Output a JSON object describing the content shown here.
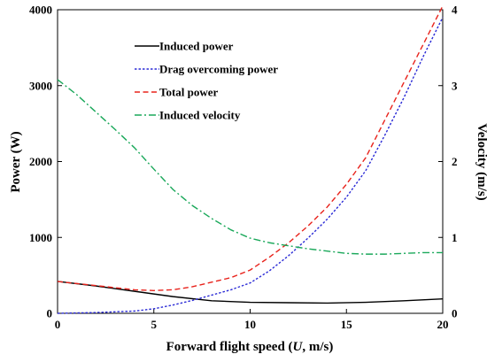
{
  "chart_data": {
    "type": "line",
    "xlabel_parts": [
      "Forward flight speed (",
      "U",
      ", m/s)"
    ],
    "ylabel_left": "Power (W)",
    "ylabel_right": "Velocity (m/s)",
    "xlim": [
      0,
      20
    ],
    "ylim_left": [
      0,
      4000
    ],
    "ylim_right": [
      0,
      4
    ],
    "xticks": [
      "0",
      "5",
      "10",
      "15",
      "20"
    ],
    "yticks_left": [
      "0",
      "1000",
      "2000",
      "3000",
      "4000"
    ],
    "yticks_right": [
      "0",
      "1",
      "2",
      "3",
      "4"
    ],
    "grid": false,
    "legend_position": "top-left",
    "series": [
      {
        "name": "Induced power",
        "axis": "left",
        "color": "#000000",
        "dash": "solid",
        "x": [
          0,
          2,
          4,
          6,
          8,
          10,
          12,
          14,
          16,
          18,
          20
        ],
        "y": [
          420,
          360,
          290,
          220,
          165,
          145,
          140,
          135,
          145,
          165,
          190
        ]
      },
      {
        "name": "Drag overcoming power",
        "axis": "left",
        "color": "#2b2bd6",
        "dash": "dotted",
        "x": [
          0,
          2,
          4,
          5,
          6,
          7,
          8,
          9,
          10,
          11,
          12,
          13,
          14,
          15,
          16,
          17,
          18,
          19,
          20
        ],
        "y": [
          0,
          10,
          30,
          60,
          110,
          170,
          240,
          310,
          400,
          560,
          760,
          990,
          1240,
          1530,
          1880,
          2350,
          2850,
          3390,
          3900
        ]
      },
      {
        "name": "Total power",
        "axis": "left",
        "color": "#e8231c",
        "dash": "dashed",
        "x": [
          0,
          2,
          4,
          5,
          6,
          7,
          8,
          9,
          10,
          11,
          12,
          13,
          14,
          15,
          16,
          17,
          18,
          19,
          20
        ],
        "y": [
          420,
          365,
          310,
          300,
          310,
          350,
          410,
          470,
          570,
          740,
          930,
          1150,
          1400,
          1700,
          2050,
          2550,
          3050,
          3550,
          4050
        ]
      },
      {
        "name": "Induced velocity",
        "axis": "right",
        "color": "#1aa85a",
        "dash": "dashdot",
        "x": [
          0,
          1,
          2,
          3,
          4,
          5,
          6,
          7,
          8,
          9,
          10,
          11,
          12,
          13,
          14,
          15,
          16,
          17,
          18,
          19,
          20
        ],
        "y": [
          3.08,
          2.88,
          2.65,
          2.42,
          2.18,
          1.9,
          1.63,
          1.42,
          1.25,
          1.1,
          0.99,
          0.93,
          0.89,
          0.85,
          0.82,
          0.79,
          0.78,
          0.78,
          0.79,
          0.8,
          0.8
        ]
      }
    ]
  }
}
